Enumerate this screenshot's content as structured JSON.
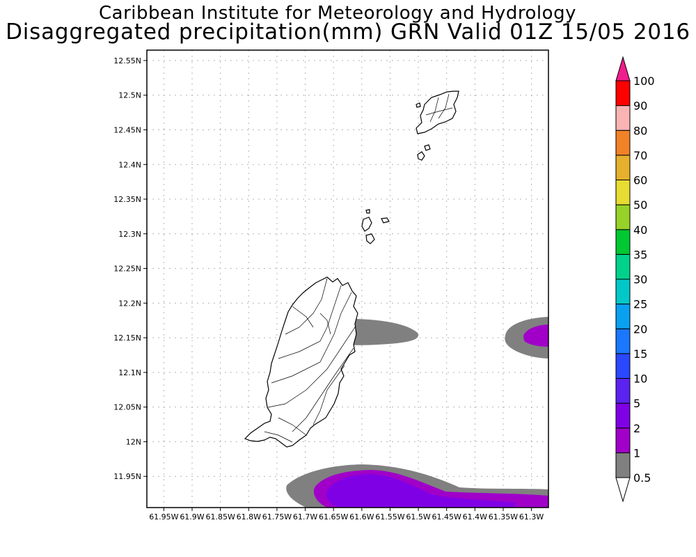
{
  "title_line1": "Caribbean Institute for Meteorology and Hydrology",
  "title_line2": "Disaggregated precipitation(mm) GRN Valid 01Z 15/05 2016",
  "map": {
    "lon_min": -61.98,
    "lon_max": -61.27,
    "lat_min": 11.905,
    "lat_max": 12.565,
    "lon_ticks": [
      -61.95,
      -61.9,
      -61.85,
      -61.8,
      -61.75,
      -61.7,
      -61.65,
      -61.6,
      -61.55,
      -61.5,
      -61.45,
      -61.4,
      -61.35,
      -61.3
    ],
    "lon_tick_labels": [
      "61.95W",
      "61.9W",
      "61.85W",
      "61.8W",
      "61.75W",
      "61.7W",
      "61.65W",
      "61.6W",
      "61.55W",
      "61.5W",
      "61.45W",
      "61.4W",
      "61.35W",
      "61.3W"
    ],
    "lat_ticks": [
      12.55,
      12.5,
      12.45,
      12.4,
      12.35,
      12.3,
      12.25,
      12.2,
      12.15,
      12.1,
      12.05,
      12.0,
      11.95
    ],
    "lat_tick_labels": [
      "12.55N",
      "12.5N",
      "12.45N",
      "12.4N",
      "12.35N",
      "12.3N",
      "12.25N",
      "12.2N",
      "12.15N",
      "12.1N",
      "12.05N",
      "12N",
      "11.95N"
    ],
    "grid": true,
    "island_color": "#000000"
  },
  "colorbar": {
    "labels": [
      "0.5",
      "1",
      "2",
      "5",
      "10",
      "15",
      "20",
      "25",
      "30",
      "35",
      "40",
      "50",
      "60",
      "70",
      "80",
      "90",
      "100"
    ],
    "colors": [
      "#808080",
      "#a000c8",
      "#8000e6",
      "#5a23f0",
      "#2a48ff",
      "#1a78ff",
      "#0aa0f0",
      "#00c8c8",
      "#00d28c",
      "#00c832",
      "#96d228",
      "#e6dc32",
      "#e6af2d",
      "#f08228",
      "#fab4b4",
      "#ff0000",
      "#f03c3c",
      "#f01e8c"
    ]
  }
}
